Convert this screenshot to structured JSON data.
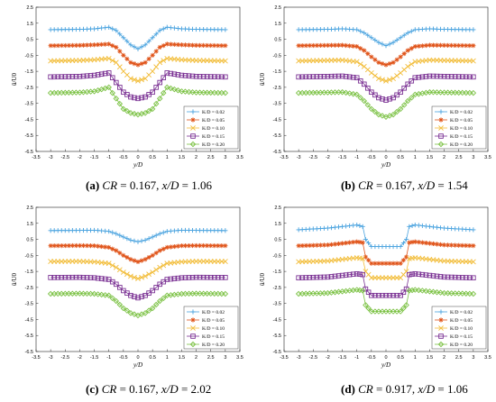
{
  "figure": {
    "captions": [
      {
        "tag": "(a)",
        "cr_label": "CR",
        "cr_value": " = 0.167, ",
        "x_label": "x/D",
        "x_value": " = 1.06"
      },
      {
        "tag": "(b)",
        "cr_label": "CR",
        "cr_value": " = 0.167, ",
        "x_label": "x/D",
        "x_value": " = 1.54"
      },
      {
        "tag": "(c)",
        "cr_label": "CR",
        "cr_value": " = 0.167, ",
        "x_label": "x/D",
        "x_value": " = 2.02"
      },
      {
        "tag": "(d)",
        "cr_label": "CR",
        "cr_value": " = 0.917, ",
        "x_label": "x/D",
        "x_value": " = 1.06"
      }
    ]
  },
  "chart_data": [
    {
      "type": "line",
      "xlabel": "y/D",
      "ylabel": "ū/U0",
      "xlim": [
        -3.5,
        3.5
      ],
      "ylim": [
        -6.5,
        2.5
      ],
      "xticks": [
        "-3.5",
        "-3",
        "-2.5",
        "-2",
        "-1.5",
        "-1",
        "-0.5",
        "0",
        "0.5",
        "1",
        "1.5",
        "2",
        "2.5",
        "3",
        "3.5"
      ],
      "yticks": [
        "2.5",
        "1.5",
        "0.5",
        "-0.5",
        "-1.5",
        "-2.5",
        "-3.5",
        "-4.5",
        "-5.5",
        "-6.5"
      ],
      "legend_position": "lower-right",
      "grid": false,
      "series": [
        {
          "name": "K/D = 0.02",
          "color": "#4aa3df",
          "marker": "plus",
          "x": [
            -3,
            -2,
            -1.5,
            -1,
            -0.75,
            -0.5,
            -0.25,
            0,
            0.25,
            0.5,
            0.75,
            1,
            1.5,
            2,
            3
          ],
          "y": [
            1.1,
            1.12,
            1.15,
            1.25,
            1.05,
            0.6,
            0.15,
            -0.1,
            0.15,
            0.6,
            1.05,
            1.25,
            1.15,
            1.12,
            1.1
          ]
        },
        {
          "name": "K/D = 0.05",
          "color": "#e0541a",
          "marker": "star",
          "x": [
            -3,
            -2,
            -1.5,
            -1,
            -0.75,
            -0.5,
            -0.25,
            0,
            0.25,
            0.5,
            0.75,
            1,
            1.5,
            2,
            3
          ],
          "y": [
            0.1,
            0.12,
            0.15,
            0.2,
            0.0,
            -0.5,
            -0.95,
            -1.1,
            -0.95,
            -0.5,
            0.0,
            0.2,
            0.15,
            0.12,
            0.1
          ]
        },
        {
          "name": "K/D = 0.10",
          "color": "#f2bd3a",
          "marker": "x",
          "x": [
            -3,
            -2,
            -1.5,
            -1,
            -0.75,
            -0.5,
            -0.25,
            0,
            0.25,
            0.5,
            0.75,
            1,
            1.5,
            2,
            3
          ],
          "y": [
            -0.85,
            -0.82,
            -0.78,
            -0.7,
            -0.95,
            -1.5,
            -1.95,
            -2.1,
            -1.95,
            -1.5,
            -0.95,
            -0.7,
            -0.78,
            -0.82,
            -0.85
          ]
        },
        {
          "name": "K/D = 0.15",
          "color": "#7b3294",
          "marker": "square",
          "x": [
            -3,
            -2,
            -1.5,
            -1,
            -0.75,
            -0.5,
            -0.25,
            0,
            0.25,
            0.5,
            0.75,
            1,
            1.5,
            2,
            3
          ],
          "y": [
            -1.85,
            -1.82,
            -1.75,
            -1.6,
            -2.2,
            -2.8,
            -3.1,
            -3.2,
            -3.1,
            -2.8,
            -2.2,
            -1.6,
            -1.75,
            -1.82,
            -1.85
          ]
        },
        {
          "name": "K/D = 0.20",
          "color": "#7ac142",
          "marker": "diamond",
          "x": [
            -3,
            -2,
            -1.5,
            -1,
            -0.75,
            -0.5,
            -0.25,
            0,
            0.25,
            0.5,
            0.75,
            1,
            1.5,
            2,
            3
          ],
          "y": [
            -2.85,
            -2.82,
            -2.75,
            -2.5,
            -3.2,
            -3.85,
            -4.1,
            -4.2,
            -4.1,
            -3.85,
            -3.2,
            -2.5,
            -2.75,
            -2.82,
            -2.85
          ]
        }
      ]
    },
    {
      "type": "line",
      "xlabel": "y/D",
      "ylabel": "ū/U0",
      "xlim": [
        -3.5,
        3.5
      ],
      "ylim": [
        -6.5,
        2.5
      ],
      "xticks": [
        "-3.5",
        "-3",
        "-2.5",
        "-2",
        "-1.5",
        "-1",
        "-0.5",
        "0",
        "0.5",
        "1",
        "1.5",
        "2",
        "2.5",
        "3",
        "3.5"
      ],
      "yticks": [
        "2.5",
        "1.5",
        "0.5",
        "-0.5",
        "-1.5",
        "-2.5",
        "-3.5",
        "-4.5",
        "-5.5",
        "-6.5"
      ],
      "legend_position": "lower-right",
      "grid": false,
      "series": [
        {
          "name": "K/D = 0.02",
          "color": "#4aa3df",
          "marker": "plus",
          "x": [
            -3,
            -2,
            -1.5,
            -1,
            -0.75,
            -0.5,
            -0.25,
            0,
            0.25,
            0.5,
            0.75,
            1,
            1.5,
            2,
            3
          ],
          "y": [
            1.1,
            1.12,
            1.15,
            1.1,
            0.9,
            0.6,
            0.3,
            0.1,
            0.3,
            0.6,
            0.9,
            1.1,
            1.15,
            1.12,
            1.1
          ]
        },
        {
          "name": "K/D = 0.05",
          "color": "#e0541a",
          "marker": "star",
          "x": [
            -3,
            -2,
            -1.5,
            -1,
            -0.75,
            -0.5,
            -0.25,
            0,
            0.25,
            0.5,
            0.75,
            1,
            1.5,
            2,
            3
          ],
          "y": [
            0.1,
            0.12,
            0.13,
            0.05,
            -0.2,
            -0.6,
            -0.95,
            -1.1,
            -0.95,
            -0.6,
            -0.2,
            0.05,
            0.13,
            0.12,
            0.1
          ]
        },
        {
          "name": "K/D = 0.10",
          "color": "#f2bd3a",
          "marker": "x",
          "x": [
            -3,
            -2,
            -1.5,
            -1,
            -0.75,
            -0.5,
            -0.25,
            0,
            0.25,
            0.5,
            0.75,
            1,
            1.5,
            2,
            3
          ],
          "y": [
            -0.85,
            -0.82,
            -0.8,
            -0.9,
            -1.2,
            -1.6,
            -1.95,
            -2.1,
            -1.95,
            -1.6,
            -1.2,
            -0.9,
            -0.8,
            -0.82,
            -0.85
          ]
        },
        {
          "name": "K/D = 0.15",
          "color": "#7b3294",
          "marker": "square",
          "x": [
            -3,
            -2,
            -1.5,
            -1,
            -0.75,
            -0.5,
            -0.25,
            0,
            0.25,
            0.5,
            0.75,
            1,
            1.5,
            2,
            3
          ],
          "y": [
            -1.85,
            -1.82,
            -1.8,
            -1.9,
            -2.3,
            -2.8,
            -3.15,
            -3.3,
            -3.15,
            -2.8,
            -2.3,
            -1.9,
            -1.8,
            -1.82,
            -1.85
          ]
        },
        {
          "name": "K/D = 0.20",
          "color": "#7ac142",
          "marker": "diamond",
          "x": [
            -3,
            -2,
            -1.5,
            -1,
            -0.75,
            -0.5,
            -0.25,
            0,
            0.25,
            0.5,
            0.75,
            1,
            1.5,
            2,
            3
          ],
          "y": [
            -2.85,
            -2.82,
            -2.8,
            -2.95,
            -3.35,
            -3.85,
            -4.2,
            -4.35,
            -4.2,
            -3.85,
            -3.35,
            -2.95,
            -2.8,
            -2.82,
            -2.85
          ]
        }
      ]
    },
    {
      "type": "line",
      "xlabel": "y/D",
      "ylabel": "ū/U0",
      "xlim": [
        -3.5,
        3.5
      ],
      "ylim": [
        -6.5,
        2.5
      ],
      "xticks": [
        "-3.5",
        "-3",
        "-2.5",
        "-2",
        "-1.5",
        "-1",
        "-0.5",
        "0",
        "0.5",
        "1",
        "1.5",
        "2",
        "2.5",
        "3",
        "3.5"
      ],
      "yticks": [
        "2.5",
        "1.5",
        "0.5",
        "-0.5",
        "-1.5",
        "-2.5",
        "-3.5",
        "-4.5",
        "-5.5",
        "-6.5"
      ],
      "legend_position": "lower-right",
      "grid": false,
      "series": [
        {
          "name": "K/D = 0.02",
          "color": "#4aa3df",
          "marker": "plus",
          "x": [
            -3,
            -2,
            -1.5,
            -1,
            -0.75,
            -0.5,
            -0.25,
            0,
            0.25,
            0.5,
            0.75,
            1,
            1.5,
            2,
            3
          ],
          "y": [
            1.05,
            1.06,
            1.07,
            1.0,
            0.85,
            0.65,
            0.45,
            0.35,
            0.45,
            0.65,
            0.85,
            1.0,
            1.07,
            1.06,
            1.05
          ]
        },
        {
          "name": "K/D = 0.05",
          "color": "#e0541a",
          "marker": "star",
          "x": [
            -3,
            -2,
            -1.5,
            -1,
            -0.75,
            -0.5,
            -0.25,
            0,
            0.25,
            0.5,
            0.75,
            1,
            1.5,
            2,
            3
          ],
          "y": [
            0.1,
            0.11,
            0.1,
            0.0,
            -0.2,
            -0.5,
            -0.75,
            -0.9,
            -0.75,
            -0.5,
            -0.2,
            0.0,
            0.1,
            0.11,
            0.1
          ]
        },
        {
          "name": "K/D = 0.10",
          "color": "#f2bd3a",
          "marker": "x",
          "x": [
            -3,
            -2,
            -1.5,
            -1,
            -0.75,
            -0.5,
            -0.25,
            0,
            0.25,
            0.5,
            0.75,
            1,
            1.5,
            2,
            3
          ],
          "y": [
            -0.88,
            -0.87,
            -0.9,
            -1.0,
            -1.25,
            -1.55,
            -1.8,
            -1.95,
            -1.8,
            -1.55,
            -1.25,
            -1.0,
            -0.9,
            -0.87,
            -0.88
          ]
        },
        {
          "name": "K/D = 0.15",
          "color": "#7b3294",
          "marker": "square",
          "x": [
            -3,
            -2,
            -1.5,
            -1,
            -0.75,
            -0.5,
            -0.25,
            0,
            0.25,
            0.5,
            0.75,
            1,
            1.5,
            2,
            3
          ],
          "y": [
            -1.88,
            -1.87,
            -1.9,
            -2.0,
            -2.3,
            -2.7,
            -3.0,
            -3.15,
            -3.0,
            -2.7,
            -2.3,
            -2.0,
            -1.9,
            -1.87,
            -1.88
          ]
        },
        {
          "name": "K/D = 0.20",
          "color": "#7ac142",
          "marker": "diamond",
          "x": [
            -3,
            -2,
            -1.5,
            -1,
            -0.75,
            -0.5,
            -0.25,
            0,
            0.25,
            0.5,
            0.75,
            1,
            1.5,
            2,
            3
          ],
          "y": [
            -2.9,
            -2.88,
            -2.9,
            -3.0,
            -3.35,
            -3.8,
            -4.1,
            -4.25,
            -4.1,
            -3.8,
            -3.35,
            -3.0,
            -2.9,
            -2.88,
            -2.9
          ]
        }
      ]
    },
    {
      "type": "line",
      "xlabel": "y/D",
      "ylabel": "ū/U0",
      "xlim": [
        -3.5,
        3.5
      ],
      "ylim": [
        -6.5,
        2.5
      ],
      "xticks": [
        "-3.5",
        "-3",
        "-2.5",
        "-2",
        "-1.5",
        "-1",
        "-0.5",
        "0",
        "0.5",
        "1",
        "1.5",
        "2",
        "2.5",
        "3",
        "3.5"
      ],
      "yticks": [
        "2.5",
        "1.5",
        "0.5",
        "-0.5",
        "-1.5",
        "-2.5",
        "-3.5",
        "-4.5",
        "-5.5",
        "-6.5"
      ],
      "legend_position": "lower-right",
      "grid": false,
      "series": [
        {
          "name": "K/D = 0.02",
          "color": "#4aa3df",
          "marker": "plus",
          "x": [
            -3,
            -2,
            -1.5,
            -1,
            -0.8,
            -0.7,
            -0.5,
            0,
            0.5,
            0.7,
            0.8,
            1,
            1.5,
            2,
            3
          ],
          "y": [
            1.1,
            1.2,
            1.3,
            1.4,
            1.3,
            0.5,
            0.05,
            0.05,
            0.05,
            0.5,
            1.3,
            1.4,
            1.3,
            1.2,
            1.1
          ]
        },
        {
          "name": "K/D = 0.05",
          "color": "#e0541a",
          "marker": "star",
          "x": [
            -3,
            -2,
            -1.5,
            -1,
            -0.8,
            -0.7,
            -0.5,
            0,
            0.5,
            0.7,
            0.8,
            1,
            1.5,
            2,
            3
          ],
          "y": [
            0.1,
            0.15,
            0.25,
            0.35,
            0.3,
            -0.6,
            -1.0,
            -1.0,
            -1.0,
            -0.6,
            0.3,
            0.35,
            0.25,
            0.15,
            0.1
          ]
        },
        {
          "name": "K/D = 0.10",
          "color": "#f2bd3a",
          "marker": "x",
          "x": [
            -3,
            -2,
            -1.5,
            -1,
            -0.8,
            -0.7,
            -0.5,
            0,
            0.5,
            0.7,
            0.8,
            1,
            1.5,
            2,
            3
          ],
          "y": [
            -0.9,
            -0.85,
            -0.75,
            -0.65,
            -0.7,
            -1.5,
            -1.9,
            -1.9,
            -1.9,
            -1.5,
            -0.7,
            -0.65,
            -0.75,
            -0.85,
            -0.9
          ]
        },
        {
          "name": "K/D = 0.15",
          "color": "#7b3294",
          "marker": "square",
          "x": [
            -3,
            -2,
            -1.5,
            -1,
            -0.8,
            -0.7,
            -0.5,
            0,
            0.5,
            0.7,
            0.8,
            1,
            1.5,
            2,
            3
          ],
          "y": [
            -1.9,
            -1.85,
            -1.75,
            -1.65,
            -1.7,
            -2.6,
            -3.0,
            -3.0,
            -3.0,
            -2.6,
            -1.7,
            -1.65,
            -1.75,
            -1.85,
            -1.9
          ]
        },
        {
          "name": "K/D = 0.20",
          "color": "#7ac142",
          "marker": "diamond",
          "x": [
            -3,
            -2,
            -1.5,
            -1,
            -0.8,
            -0.7,
            -0.5,
            0,
            0.5,
            0.7,
            0.8,
            1,
            1.5,
            2,
            3
          ],
          "y": [
            -2.9,
            -2.85,
            -2.75,
            -2.65,
            -2.7,
            -3.6,
            -4.0,
            -4.0,
            -4.0,
            -3.6,
            -2.7,
            -2.65,
            -2.75,
            -2.85,
            -2.9
          ]
        }
      ]
    }
  ]
}
